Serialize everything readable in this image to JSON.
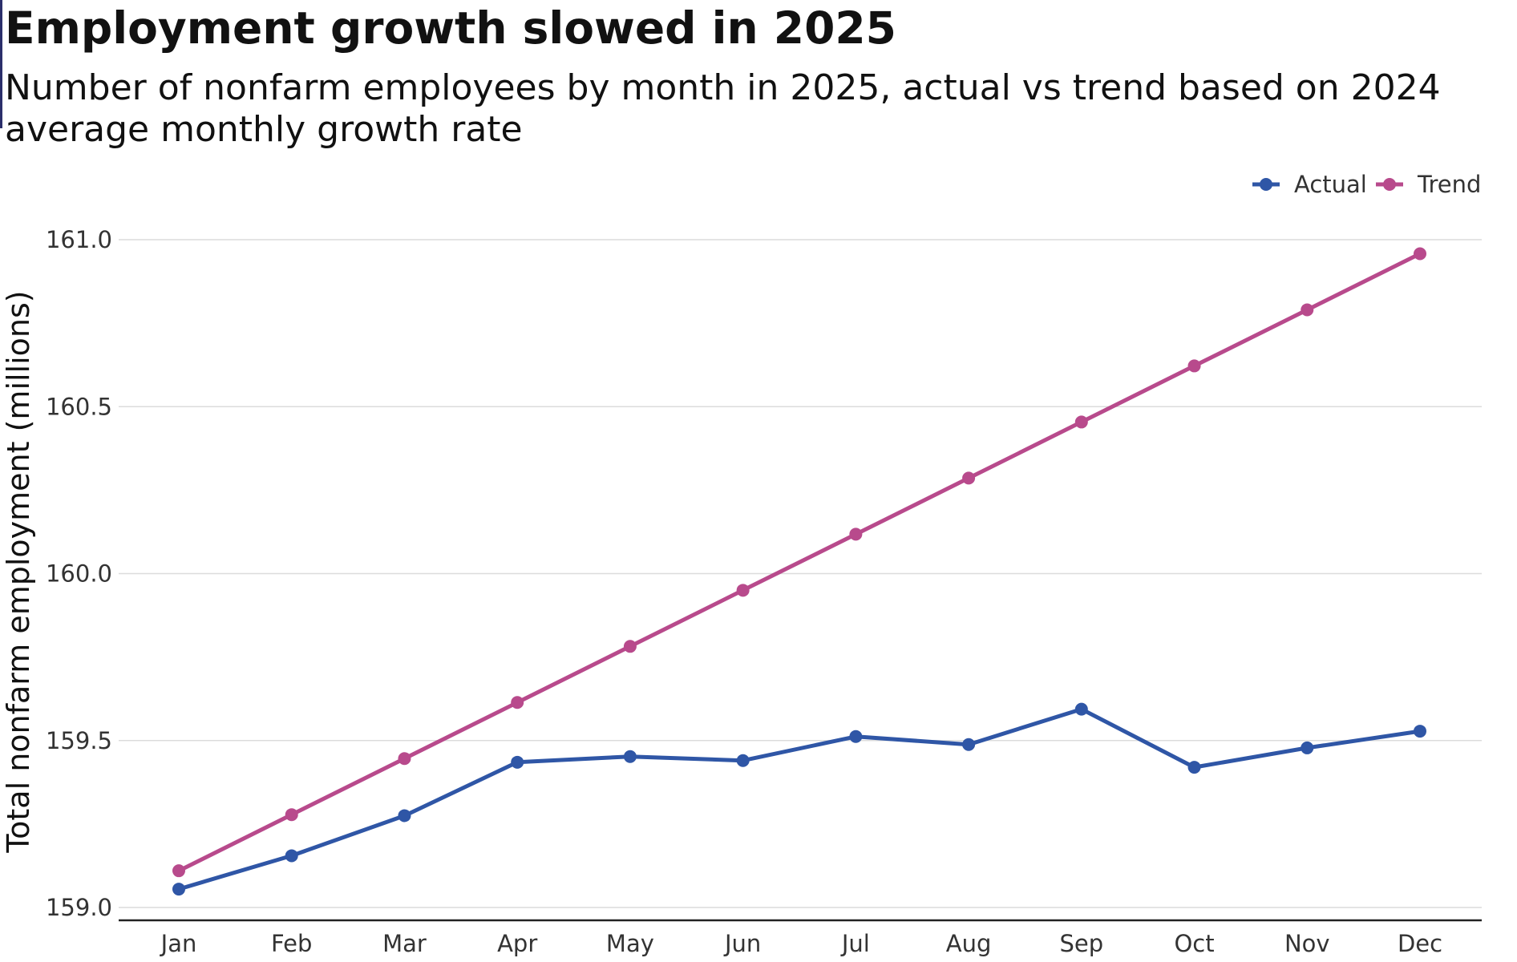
{
  "title": "Employment growth slowed in 2025",
  "subtitle": "Number of nonfarm employees by month in 2025, actual vs trend based on 2024 average monthly growth rate",
  "chart_data": {
    "type": "line",
    "categories": [
      "Jan",
      "Feb",
      "Mar",
      "Apr",
      "May",
      "Jun",
      "Jul",
      "Aug",
      "Sep",
      "Oct",
      "Nov",
      "Dec"
    ],
    "series": [
      {
        "name": "Actual",
        "color": "#2f56a6",
        "values": [
          159.055,
          159.155,
          159.275,
          159.435,
          159.452,
          159.44,
          159.512,
          159.488,
          159.594,
          159.42,
          159.478,
          159.528
        ]
      },
      {
        "name": "Trend",
        "color": "#b84a8c",
        "values": [
          159.11,
          159.278,
          159.446,
          159.614,
          159.782,
          159.95,
          160.118,
          160.286,
          160.454,
          160.622,
          160.79,
          160.958
        ]
      }
    ],
    "ylabel": "Total nonfarm employment (millions)",
    "xlabel": "",
    "ylim": [
      159.0,
      161.0
    ],
    "yticks": [
      "159.0",
      "159.5",
      "160.0",
      "160.5",
      "161.0"
    ],
    "grid": true,
    "legend_position": "top-right"
  }
}
